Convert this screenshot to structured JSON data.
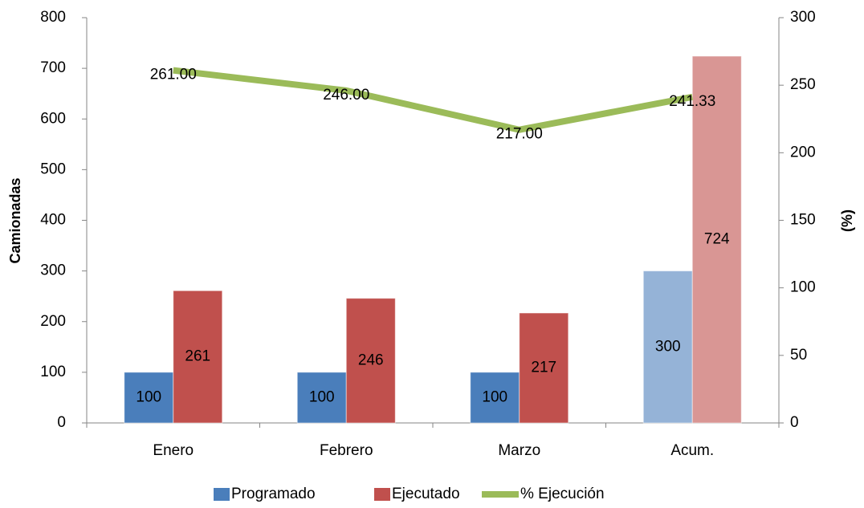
{
  "chart_data": {
    "type": "bar_line",
    "categories": [
      "Enero",
      "Febrero",
      "Marzo",
      "Acum."
    ],
    "series": [
      {
        "name": "Programado",
        "type": "bar",
        "color": "#4a7ebb",
        "point_colors": [
          "#4a7ebb",
          "#4a7ebb",
          "#4a7ebb",
          "#95b3d7"
        ],
        "values": [
          100,
          100,
          100,
          300
        ]
      },
      {
        "name": "Ejecutado",
        "type": "bar",
        "color": "#c0504d",
        "point_colors": [
          "#c0504d",
          "#c0504d",
          "#c0504d",
          "#d99694"
        ],
        "values": [
          261,
          246,
          217,
          724
        ]
      },
      {
        "name": "% Ejecución",
        "type": "line",
        "axis": "y2",
        "color": "#9bbb59",
        "values": [
          261,
          246,
          217,
          241.33
        ],
        "value_labels": [
          "261.00",
          "246.00",
          "217.00",
          "241.33"
        ]
      }
    ],
    "ylabel": "Camionadas",
    "y2label": "(%)",
    "ylim": [
      0,
      800
    ],
    "yticks": [
      0,
      100,
      200,
      300,
      400,
      500,
      600,
      700,
      800
    ],
    "y2lim": [
      0,
      300
    ],
    "y2ticks": [
      0,
      50,
      100,
      150,
      200,
      250,
      300
    ],
    "legend": "bottom"
  }
}
